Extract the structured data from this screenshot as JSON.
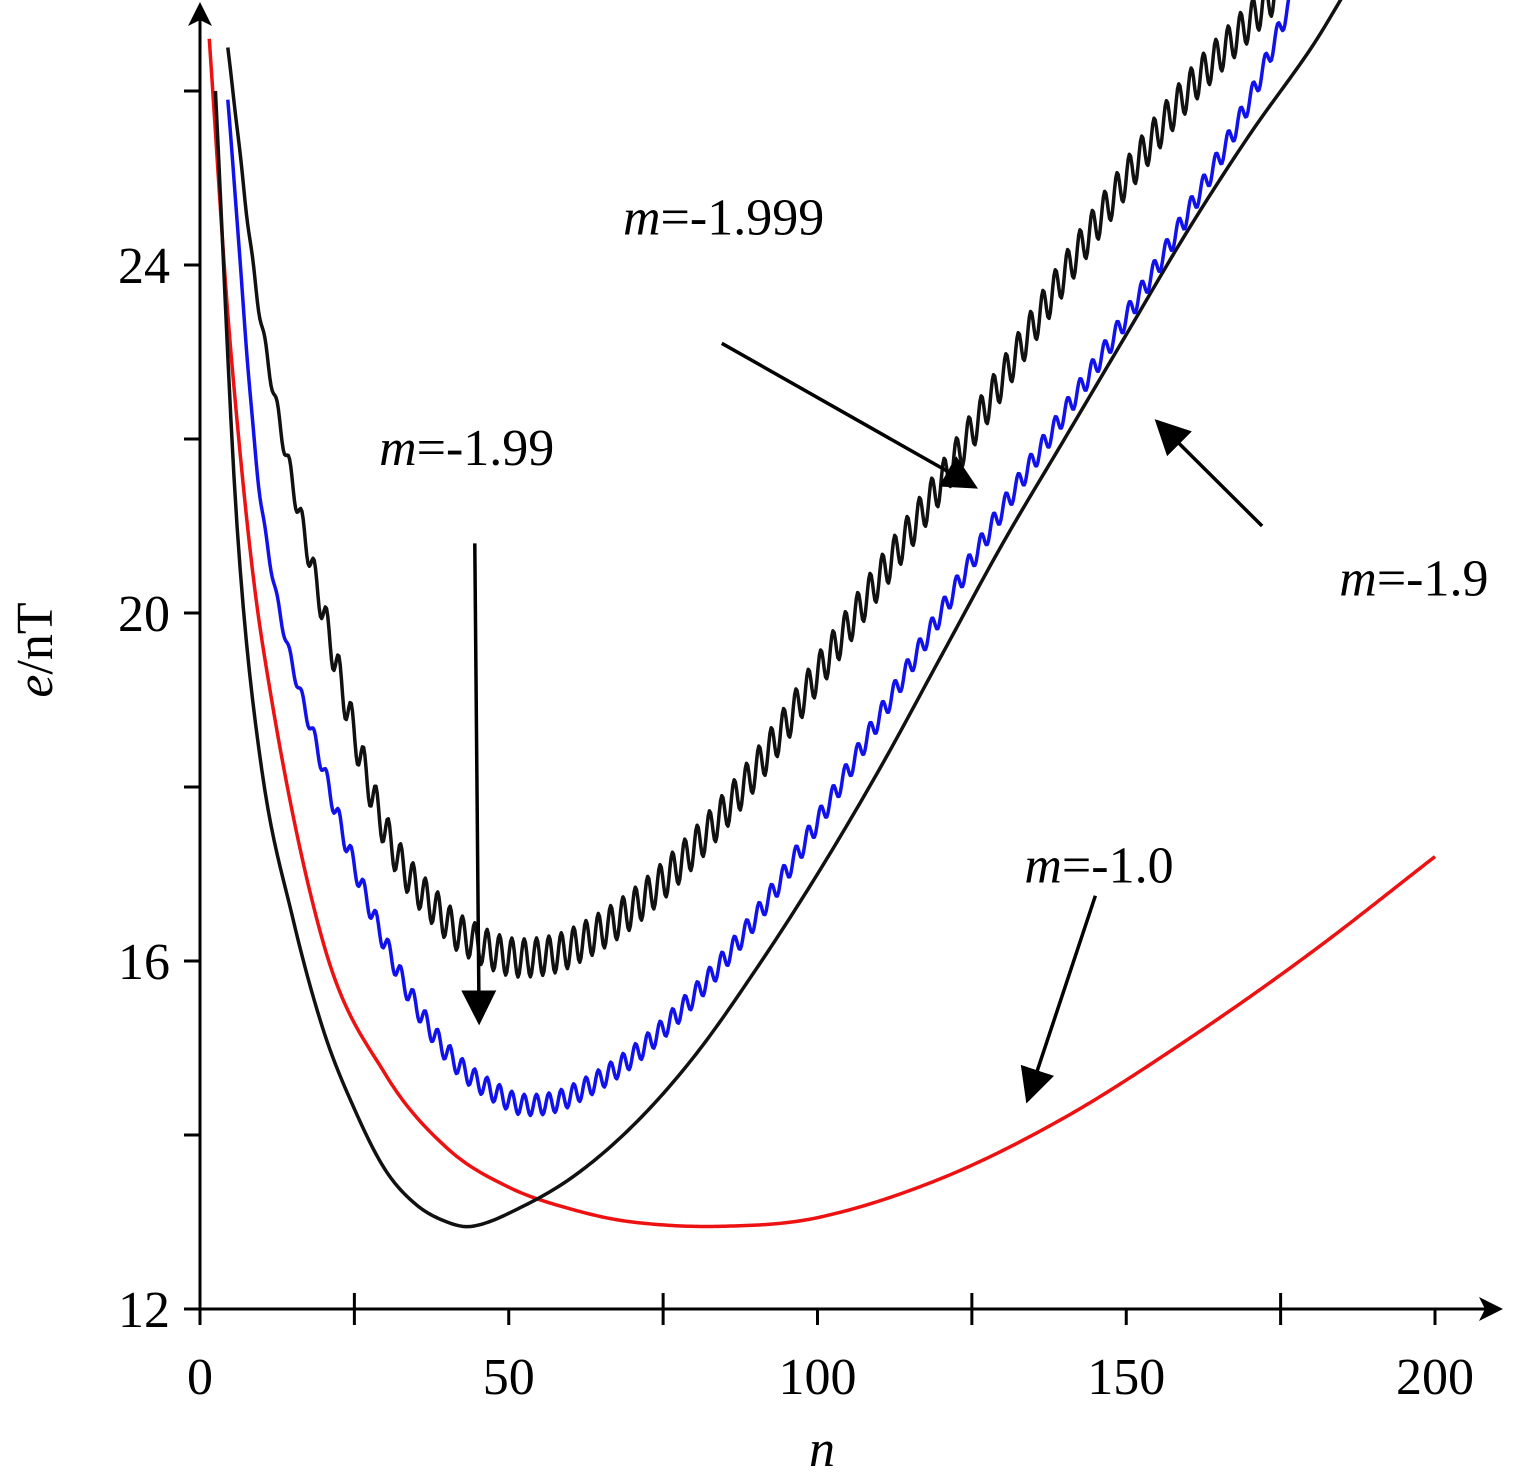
{
  "chart_data": {
    "type": "line",
    "title": "",
    "xlabel": "n",
    "ylabel_italic": "e",
    "ylabel_rest": "/nT",
    "xlim": [
      0,
      205
    ],
    "ylim": [
      12,
      27
    ],
    "xticks": [
      {
        "value": 0,
        "label": "0"
      },
      {
        "value": 50,
        "label": "50"
      },
      {
        "value": 100,
        "label": "100"
      },
      {
        "value": 150,
        "label": "150"
      },
      {
        "value": 200,
        "label": "200"
      }
    ],
    "x_minor_ticks": [
      25,
      75,
      125,
      175
    ],
    "yticks": [
      {
        "value": 12,
        "label": "12"
      },
      {
        "value": 16,
        "label": "16"
      },
      {
        "value": 20,
        "label": "20"
      },
      {
        "value": 24,
        "label": "24"
      }
    ],
    "y_minor_ticks": [
      14,
      18,
      22,
      26
    ],
    "series": [
      {
        "name": "m=-1.0",
        "color": "#ee1111",
        "x": [
          1.5,
          5,
          10,
          20,
          30,
          40,
          50,
          60,
          70,
          84,
          100,
          120,
          140,
          160,
          180,
          200
        ],
        "y": [
          26.6,
          23.0,
          19.7,
          16.2,
          14.7,
          13.85,
          13.4,
          13.15,
          13.0,
          12.95,
          13.05,
          13.5,
          14.2,
          15.1,
          16.1,
          17.2
        ],
        "wiggle_amp": 0,
        "wiggle_period": 0
      },
      {
        "name": "m=-1.9",
        "color": "#111111",
        "x": [
          2.5,
          6,
          10,
          15,
          20,
          25,
          30,
          35,
          40,
          44,
          50,
          60,
          70,
          80,
          90,
          100,
          110,
          120,
          130,
          140,
          150,
          160,
          170,
          180,
          186
        ],
        "y": [
          26.0,
          21.0,
          18.2,
          16.5,
          15.2,
          14.3,
          13.6,
          13.2,
          13.0,
          12.95,
          13.1,
          13.5,
          14.1,
          14.9,
          15.9,
          17.0,
          18.2,
          19.5,
          20.8,
          22.0,
          23.2,
          24.4,
          25.5,
          26.5,
          27.2
        ],
        "wiggle_amp": 0,
        "wiggle_period": 0
      },
      {
        "name": "m=-1.99",
        "color": "#1111ee",
        "x": [
          4.5,
          10,
          20,
          30,
          40,
          50,
          55,
          60,
          70,
          80,
          90,
          100,
          110,
          120,
          130,
          140,
          150,
          160,
          170,
          176.5
        ],
        "y": [
          25.9,
          21.2,
          18.2,
          16.2,
          14.95,
          14.4,
          14.35,
          14.45,
          14.9,
          15.6,
          16.5,
          17.6,
          18.8,
          20.0,
          21.2,
          22.3,
          23.4,
          24.6,
          25.9,
          27.0
        ],
        "wiggle_amp": 0.12,
        "wiggle_period": 2.0
      },
      {
        "name": "m=-1.999",
        "color": "#111111",
        "x": [
          4.5,
          10,
          20,
          30,
          40,
          45,
          50,
          55,
          60,
          70,
          80,
          90,
          100,
          110,
          120,
          130,
          140,
          150,
          160,
          170,
          175
        ],
        "y": [
          26.5,
          23.3,
          20.0,
          17.5,
          16.45,
          16.2,
          16.05,
          16.05,
          16.15,
          16.6,
          17.3,
          18.2,
          19.3,
          20.4,
          21.5,
          22.7,
          23.9,
          25.0,
          26.0,
          26.8,
          27.2
        ],
        "wiggle_amp": 0.22,
        "wiggle_period": 2.0
      }
    ],
    "annotations": [
      {
        "prefix": "m",
        "text": "=-1.999",
        "label_xy": [
          68.5,
          24.35
        ],
        "arrow_from": [
          84.5,
          23.1
        ],
        "arrow_to": [
          125.5,
          21.45
        ]
      },
      {
        "prefix": "m",
        "text": "=-1.99",
        "label_xy": [
          29,
          21.7
        ],
        "arrow_from": [
          44.5,
          20.8
        ],
        "arrow_to": [
          45.2,
          15.3
        ]
      },
      {
        "prefix": "m",
        "text": "=-1.9",
        "label_xy": [
          184.5,
          20.2
        ],
        "arrow_from": [
          172,
          21.0
        ],
        "arrow_to": [
          155,
          22.2
        ]
      },
      {
        "prefix": "m",
        "text": "=-1.0",
        "label_xy": [
          133.5,
          16.9
        ],
        "arrow_from": [
          145,
          16.75
        ],
        "arrow_to": [
          134,
          14.4
        ]
      }
    ]
  }
}
